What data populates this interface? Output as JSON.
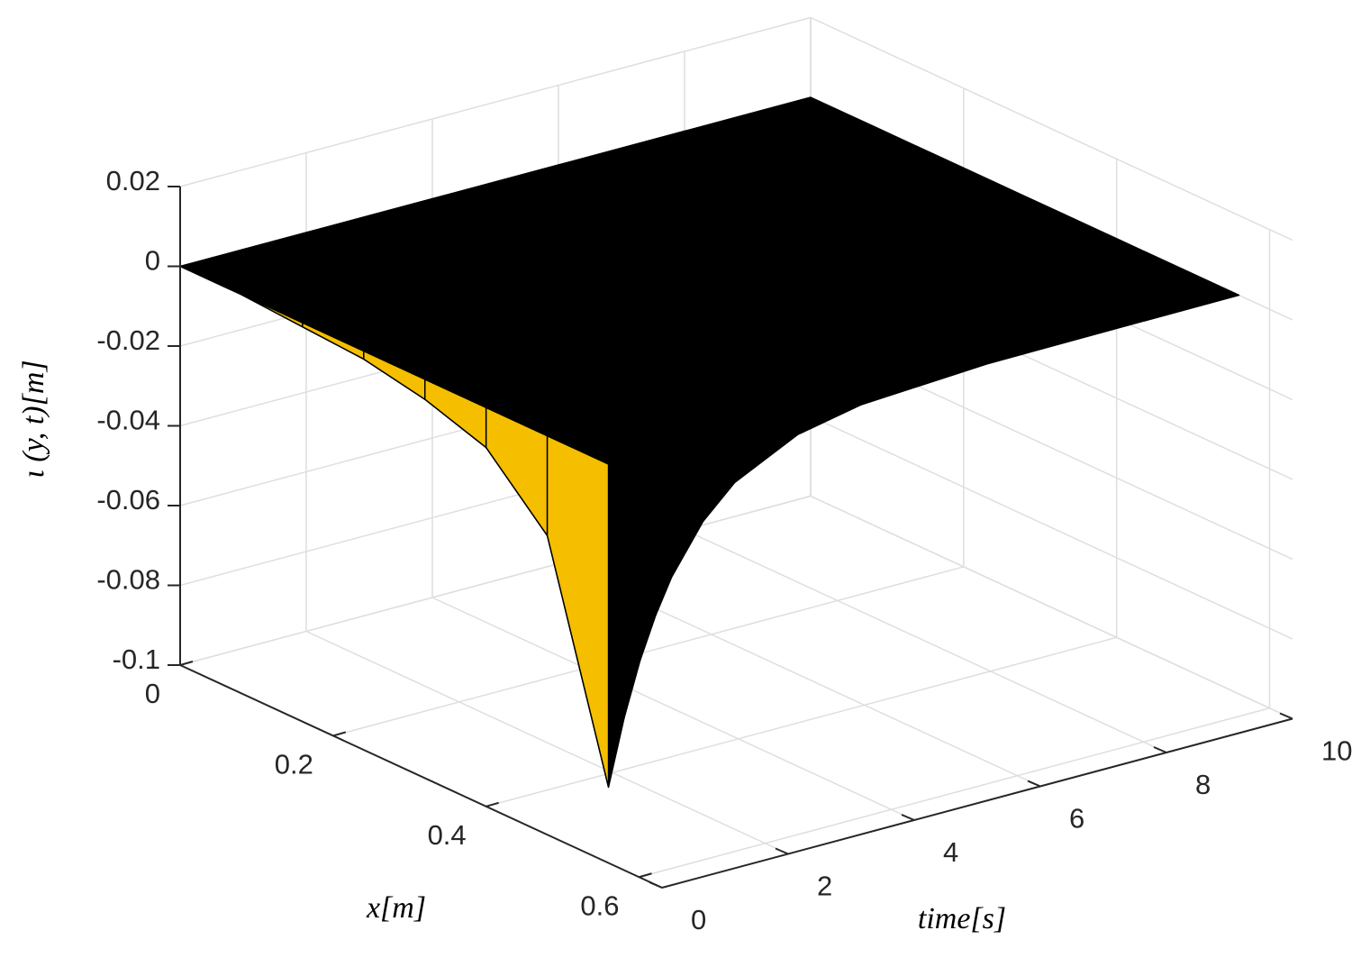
{
  "chart_data": {
    "type": "surface",
    "xlabel": "x[m]",
    "tlabel": "time[s]",
    "zlabel": "ι (y, t)[m]",
    "x": [
      0,
      0.08,
      0.16,
      0.24,
      0.32,
      0.4,
      0.48,
      0.56
    ],
    "t": [
      0,
      0.25,
      0.5,
      0.75,
      1,
      1.5,
      2,
      3,
      4,
      6,
      8,
      10
    ],
    "z": [
      [
        0,
        0,
        -0.001,
        -0.002,
        -0.005,
        -0.01,
        -0.025,
        -0.081
      ],
      [
        0,
        0,
        -0.0008,
        -0.0016,
        -0.004,
        -0.008,
        -0.0199,
        -0.0646
      ],
      [
        0,
        0,
        -0.0006,
        -0.0013,
        -0.0032,
        -0.0064,
        -0.0159,
        -0.0514
      ],
      [
        0,
        0,
        -0.0005,
        -0.001,
        -0.0025,
        -0.0051,
        -0.0127,
        -0.041
      ],
      [
        0,
        0,
        -0.0004,
        -0.0008,
        -0.002,
        -0.004,
        -0.0101,
        -0.0326
      ],
      [
        0,
        0,
        -0.0003,
        -0.0005,
        -0.0013,
        -0.0026,
        -0.0064,
        -0.0207
      ],
      [
        0,
        0,
        -0.0002,
        -0.0003,
        -0.0008,
        -0.0016,
        -0.0041,
        -0.0131
      ],
      [
        0,
        0,
        -0.0001,
        -0.0001,
        -0.0003,
        -0.0007,
        -0.0016,
        -0.0053
      ],
      [
        0,
        0,
        0,
        -0.0001,
        -0.0001,
        -0.0003,
        -0.0007,
        -0.0021
      ],
      [
        0,
        0,
        0,
        0,
        0,
        0,
        -0.0001,
        -0.0003
      ],
      [
        0,
        0,
        0,
        0,
        0,
        0,
        0,
        -0.0001
      ],
      [
        0,
        0,
        0,
        0,
        0,
        0,
        0,
        0
      ]
    ],
    "xlim": [
      0,
      0.63
    ],
    "xticks": [
      0,
      0.2,
      0.4,
      0.6
    ],
    "tlim": [
      0,
      10
    ],
    "tticks": [
      0,
      2,
      4,
      6,
      8,
      10
    ],
    "zlim": [
      -0.1,
      0.02
    ],
    "zticks": [
      -0.1,
      -0.08,
      -0.06,
      -0.04,
      -0.02,
      0,
      0.02
    ],
    "grid": true,
    "face_color": "#000000",
    "side_color": "#f5bf00"
  }
}
